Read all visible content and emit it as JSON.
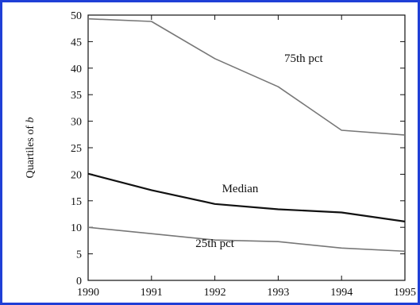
{
  "chart_data": {
    "type": "line",
    "title": "",
    "xlabel": "",
    "ylabel_prefix": "Quartiles of ",
    "ylabel_var": "b",
    "x": [
      1990,
      1991,
      1992,
      1993,
      1994,
      1995
    ],
    "xlim": [
      1990,
      1995
    ],
    "ylim": [
      0,
      50
    ],
    "yticks": [
      0,
      5,
      10,
      15,
      20,
      25,
      30,
      35,
      40,
      45,
      50
    ],
    "grid": false,
    "legend": "none",
    "series": [
      {
        "name": "75th pct",
        "values": [
          49.3,
          48.8,
          41.8,
          36.5,
          28.3,
          27.4
        ],
        "color": "#777777"
      },
      {
        "name": "Median",
        "values": [
          20.1,
          17.0,
          14.4,
          13.4,
          12.8,
          11.1
        ],
        "color": "#111111"
      },
      {
        "name": "25th pct",
        "values": [
          10.0,
          8.8,
          7.6,
          7.3,
          6.1,
          5.5
        ],
        "color": "#777777"
      }
    ]
  }
}
